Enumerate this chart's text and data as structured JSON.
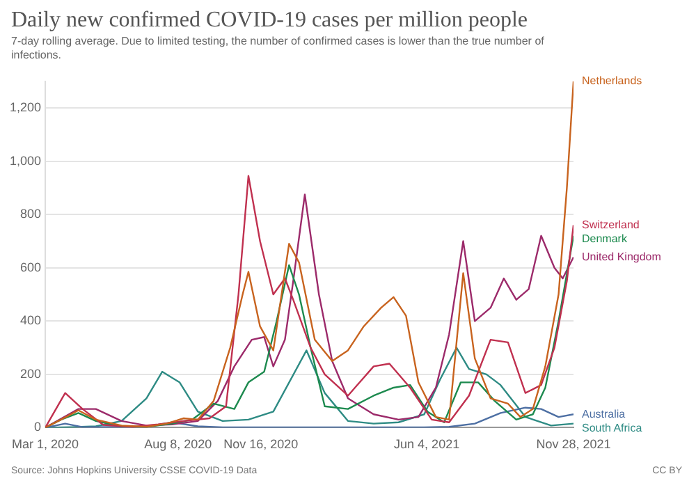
{
  "chart_data": {
    "type": "line",
    "title": "Daily new confirmed COVID-19 cases per million people",
    "subtitle": "7-day rolling average. Due to limited testing, the number of confirmed cases is lower than the true number of infections.",
    "annotations": [
      "Source: Johns Hopkins University CSSE COVID-19 Data",
      "CC BY"
    ],
    "xlim": [
      "2020-03-01",
      "2021-11-28"
    ],
    "xticks": [
      {
        "value": "2020-03-01",
        "label": "Mar 1, 2020"
      },
      {
        "value": "2020-08-08",
        "label": "Aug 8, 2020"
      },
      {
        "value": "2020-11-16",
        "label": "Nov 16, 2020"
      },
      {
        "value": "2021-06-04",
        "label": "Jun 4, 2021"
      },
      {
        "value": "2021-11-28",
        "label": "Nov 28, 2021"
      }
    ],
    "ylim": [
      0,
      1300
    ],
    "yticks": [
      0,
      200,
      400,
      600,
      800,
      {
        "value": 1000,
        "label": "1,000"
      },
      {
        "value": 1200,
        "label": "1,200"
      }
    ],
    "grid": "y",
    "legend": false,
    "marker": "none",
    "line_style": "solid",
    "series": [
      {
        "name": "Netherlands",
        "color": "#c8631e",
        "x": [
          "2020-03-01",
          "2020-03-20",
          "2020-04-10",
          "2020-05-01",
          "2020-06-01",
          "2020-07-01",
          "2020-07-25",
          "2020-08-15",
          "2020-09-01",
          "2020-09-20",
          "2020-10-10",
          "2020-10-25",
          "2020-11-01",
          "2020-11-15",
          "2020-12-01",
          "2020-12-20",
          "2021-01-01",
          "2021-01-20",
          "2021-02-10",
          "2021-03-01",
          "2021-03-20",
          "2021-04-10",
          "2021-04-25",
          "2021-05-10",
          "2021-05-25",
          "2021-06-15",
          "2021-07-01",
          "2021-07-18",
          "2021-08-01",
          "2021-08-20",
          "2021-09-10",
          "2021-09-25",
          "2021-10-10",
          "2021-10-25",
          "2021-11-10",
          "2021-11-20",
          "2021-11-28"
        ],
        "values": [
          0,
          30,
          65,
          30,
          8,
          3,
          15,
          35,
          30,
          100,
          300,
          500,
          585,
          380,
          290,
          690,
          620,
          330,
          250,
          290,
          380,
          450,
          490,
          420,
          170,
          40,
          30,
          580,
          260,
          110,
          90,
          40,
          70,
          230,
          500,
          900,
          1300
        ]
      },
      {
        "name": "Switzerland",
        "color": "#c0304f",
        "x": [
          "2020-03-01",
          "2020-03-25",
          "2020-04-15",
          "2020-05-10",
          "2020-06-15",
          "2020-07-15",
          "2020-08-15",
          "2020-09-15",
          "2020-10-05",
          "2020-10-20",
          "2020-11-01",
          "2020-11-15",
          "2020-12-01",
          "2020-12-15",
          "2020-12-25",
          "2021-01-15",
          "2021-02-01",
          "2021-03-01",
          "2021-04-01",
          "2021-04-20",
          "2021-05-15",
          "2021-06-10",
          "2021-07-01",
          "2021-07-25",
          "2021-08-20",
          "2021-09-10",
          "2021-10-01",
          "2021-10-20",
          "2021-11-05",
          "2021-11-20",
          "2021-11-28"
        ],
        "values": [
          0,
          130,
          70,
          10,
          3,
          12,
          25,
          35,
          80,
          500,
          945,
          700,
          500,
          560,
          480,
          300,
          200,
          120,
          230,
          240,
          150,
          30,
          20,
          120,
          330,
          320,
          130,
          160,
          300,
          550,
          760
        ]
      },
      {
        "name": "Denmark",
        "color": "#1d8a4f",
        "x": [
          "2020-03-01",
          "2020-03-20",
          "2020-04-10",
          "2020-05-01",
          "2020-06-01",
          "2020-07-01",
          "2020-08-01",
          "2020-08-25",
          "2020-09-20",
          "2020-10-15",
          "2020-11-01",
          "2020-11-20",
          "2020-12-05",
          "2020-12-20",
          "2021-01-01",
          "2021-01-15",
          "2021-02-01",
          "2021-03-01",
          "2021-04-01",
          "2021-04-25",
          "2021-05-15",
          "2021-06-05",
          "2021-06-25",
          "2021-07-15",
          "2021-08-05",
          "2021-08-25",
          "2021-09-20",
          "2021-10-10",
          "2021-10-25",
          "2021-11-10",
          "2021-11-28"
        ],
        "values": [
          0,
          30,
          55,
          25,
          5,
          3,
          15,
          30,
          90,
          70,
          170,
          210,
          400,
          610,
          500,
          300,
          80,
          70,
          120,
          150,
          160,
          60,
          20,
          170,
          170,
          100,
          30,
          50,
          150,
          400,
          720
        ]
      },
      {
        "name": "United Kingdom",
        "color": "#9c2a6a",
        "x": [
          "2020-03-01",
          "2020-04-10",
          "2020-05-01",
          "2020-06-01",
          "2020-07-01",
          "2020-08-01",
          "2020-09-01",
          "2020-09-25",
          "2020-10-15",
          "2020-11-05",
          "2020-11-20",
          "2020-12-01",
          "2020-12-15",
          "2020-12-25",
          "2021-01-08",
          "2021-01-25",
          "2021-02-10",
          "2021-03-01",
          "2021-04-01",
          "2021-05-01",
          "2021-05-25",
          "2021-06-15",
          "2021-07-01",
          "2021-07-18",
          "2021-08-01",
          "2021-08-20",
          "2021-09-05",
          "2021-09-20",
          "2021-10-05",
          "2021-10-20",
          "2021-11-05",
          "2021-11-15",
          "2021-11-28"
        ],
        "values": [
          0,
          70,
          70,
          25,
          8,
          12,
          25,
          100,
          230,
          330,
          340,
          230,
          330,
          550,
          875,
          500,
          250,
          110,
          50,
          30,
          40,
          150,
          350,
          700,
          400,
          450,
          560,
          480,
          520,
          720,
          600,
          560,
          640
        ]
      },
      {
        "name": "Australia",
        "color": "#4d6fa3",
        "x": [
          "2020-03-01",
          "2020-03-25",
          "2020-04-15",
          "2020-07-01",
          "2020-08-01",
          "2020-09-01",
          "2020-10-01",
          "2021-01-01",
          "2021-06-01",
          "2021-07-01",
          "2021-08-01",
          "2021-09-01",
          "2021-10-01",
          "2021-10-20",
          "2021-11-10",
          "2021-11-28"
        ],
        "values": [
          0,
          15,
          2,
          3,
          20,
          5,
          1,
          1,
          1,
          3,
          15,
          55,
          75,
          70,
          40,
          50
        ]
      },
      {
        "name": "South Africa",
        "color": "#2e8b84",
        "x": [
          "2020-03-01",
          "2020-04-01",
          "2020-05-01",
          "2020-06-01",
          "2020-07-01",
          "2020-07-20",
          "2020-08-10",
          "2020-09-01",
          "2020-10-01",
          "2020-11-01",
          "2020-12-01",
          "2021-01-10",
          "2021-02-01",
          "2021-03-01",
          "2021-04-01",
          "2021-05-01",
          "2021-06-01",
          "2021-06-20",
          "2021-07-10",
          "2021-07-25",
          "2021-08-15",
          "2021-09-01",
          "2021-10-01",
          "2021-11-01",
          "2021-11-28"
        ],
        "values": [
          0,
          2,
          5,
          25,
          110,
          210,
          170,
          60,
          25,
          30,
          60,
          290,
          130,
          25,
          15,
          20,
          50,
          180,
          300,
          220,
          200,
          160,
          40,
          8,
          15
        ]
      }
    ]
  }
}
